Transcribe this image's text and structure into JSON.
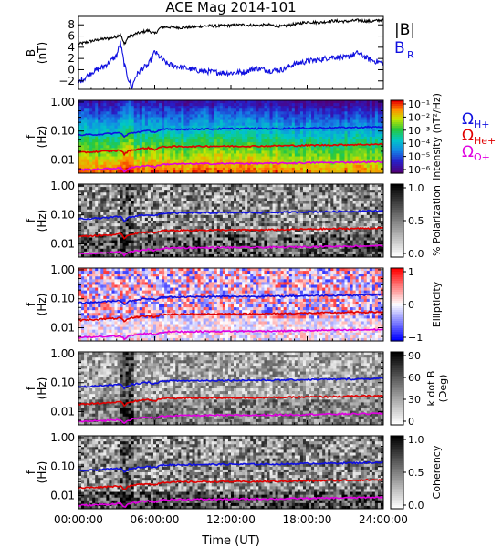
{
  "title": "ACE Mag 2014-101",
  "xlabel": "Time (UT)",
  "xticks": [
    "00:00:00",
    "06:00:00",
    "12:00:00",
    "18:00:00",
    "24:00:00"
  ],
  "colors": {
    "B_total": "#000000",
    "B_R": "#1010e0",
    "H_plus": "#1010e0",
    "He_plus": "#e00000",
    "O_plus": "#e000e0"
  },
  "chart_data": [
    {
      "type": "line",
      "panel": "field",
      "ylabel_top": "B",
      "ylabel_bottom": "(nT)",
      "yticks": [
        "8",
        "6",
        "4",
        "2",
        "0",
        "−2"
      ],
      "ylim": [
        -3.5,
        9.5
      ],
      "xlim_hours": [
        0,
        24
      ],
      "legend": [
        {
          "label": "|B|",
          "color": "#000000"
        },
        {
          "label": "B",
          "sub": "R",
          "color": "#1010e0"
        }
      ],
      "series": [
        {
          "name": "|B|",
          "x": [
            0,
            0.5,
            1,
            1.5,
            2,
            2.5,
            3,
            3.3,
            3.6,
            3.9,
            4.2,
            4.5,
            5,
            5.5,
            6,
            6.5,
            7,
            8,
            9,
            10,
            11,
            12,
            13,
            14,
            15,
            16,
            17,
            18,
            19,
            20,
            21,
            22,
            23,
            24
          ],
          "y": [
            4.6,
            4.8,
            5.1,
            5.3,
            5.5,
            5.6,
            5.9,
            6.4,
            4.5,
            5.8,
            6.0,
            6.4,
            6.7,
            7.0,
            6.4,
            7.6,
            7.6,
            7.5,
            7.6,
            7.8,
            7.8,
            7.9,
            8.0,
            7.9,
            8.0,
            7.7,
            8.1,
            8.5,
            8.4,
            8.7,
            8.6,
            8.8,
            8.6,
            8.9
          ]
        },
        {
          "name": "B_R",
          "x": [
            0,
            0.5,
            1,
            1.5,
            2,
            2.5,
            3,
            3.3,
            3.6,
            3.9,
            4.2,
            4.5,
            5,
            5.5,
            6,
            6.5,
            7,
            8,
            9,
            10,
            11,
            12,
            13,
            14,
            15,
            16,
            17,
            18,
            19,
            20,
            21,
            22,
            23,
            24
          ],
          "y": [
            -2.2,
            -1.5,
            -0.5,
            0.0,
            0.6,
            1.5,
            2.5,
            4.8,
            1.0,
            -1.5,
            -3.2,
            -1.2,
            0.2,
            0.8,
            3.2,
            2.0,
            1.0,
            0.5,
            0.0,
            -0.3,
            -0.5,
            -0.6,
            -0.4,
            0.3,
            -0.2,
            0.0,
            1.0,
            1.5,
            1.8,
            2.3,
            2.1,
            3.0,
            1.7,
            1.2
          ]
        }
      ]
    },
    {
      "type": "heatmap",
      "panel": "intensity",
      "ylabel_top": "f",
      "ylabel_bottom": "(Hz)",
      "yticks": [
        "1.00",
        "0.10",
        "0.01"
      ],
      "colorbar_label": "Intensity (nT²/Hz)",
      "colorbar_ticks": [
        "10⁻¹",
        "10⁻²",
        "10⁻³",
        "10⁻⁴",
        "10⁻⁵",
        "10⁻⁶"
      ],
      "colorbar_scale": "rainbow",
      "legend": [
        {
          "label": "Ω",
          "sub": "H+",
          "color": "#1010e0"
        },
        {
          "label": "Ω",
          "sub": "He+",
          "color": "#e00000"
        },
        {
          "label": "Ω",
          "sub": "O+",
          "color": "#e000e0"
        }
      ]
    },
    {
      "type": "heatmap",
      "panel": "polarization",
      "ylabel_top": "f",
      "ylabel_bottom": "(Hz)",
      "yticks": [
        "1.00",
        "0.10",
        "0.01"
      ],
      "colorbar_label": "% Polarization",
      "colorbar_ticks": [
        "1.0",
        "0.5",
        "0.0"
      ],
      "colorbar_scale": "gray"
    },
    {
      "type": "heatmap",
      "panel": "ellipticity",
      "ylabel_top": "f",
      "ylabel_bottom": "(Hz)",
      "yticks": [
        "1.00",
        "0.10",
        "0.01"
      ],
      "colorbar_label": "Ellipticity",
      "colorbar_ticks": [
        "1",
        "0",
        "−1"
      ],
      "colorbar_scale": "bluered"
    },
    {
      "type": "heatmap",
      "panel": "kdotb",
      "ylabel_top": "f",
      "ylabel_bottom": "(Hz)",
      "yticks": [
        "1.00",
        "0.10",
        "0.01"
      ],
      "colorbar_label": "k dot B",
      "colorbar_label2": "(Deg)",
      "colorbar_ticks": [
        "90",
        "60",
        "30",
        "0"
      ],
      "colorbar_scale": "gray"
    },
    {
      "type": "heatmap",
      "panel": "coherency",
      "ylabel_top": "f",
      "ylabel_bottom": "(Hz)",
      "yticks": [
        "1.00",
        "0.10",
        "0.01"
      ],
      "colorbar_label": "Coherency",
      "colorbar_ticks": [
        "1.0",
        "0.5",
        "0.0"
      ],
      "colorbar_scale": "gray"
    }
  ],
  "gyrofrequency_hz": {
    "x_hours": [
      0,
      1,
      2,
      3,
      3.3,
      3.6,
      4.0,
      4.5,
      5,
      5.5,
      6,
      6.5,
      7,
      8,
      10,
      12,
      14,
      16,
      18,
      20,
      22,
      24
    ],
    "H_plus": [
      0.072,
      0.075,
      0.079,
      0.085,
      0.088,
      0.062,
      0.082,
      0.09,
      0.098,
      0.102,
      0.092,
      0.11,
      0.115,
      0.116,
      0.118,
      0.12,
      0.121,
      0.122,
      0.128,
      0.13,
      0.134,
      0.14
    ],
    "He_plus": [
      0.018,
      0.019,
      0.02,
      0.021,
      0.022,
      0.016,
      0.021,
      0.023,
      0.025,
      0.026,
      0.023,
      0.028,
      0.029,
      0.029,
      0.03,
      0.03,
      0.03,
      0.031,
      0.032,
      0.033,
      0.034,
      0.035
    ],
    "O_plus": [
      0.0046,
      0.0047,
      0.0049,
      0.0052,
      0.0054,
      0.004,
      0.0052,
      0.0057,
      0.0062,
      0.0064,
      0.0058,
      0.0069,
      0.0072,
      0.0073,
      0.0074,
      0.0075,
      0.0076,
      0.0077,
      0.008,
      0.0082,
      0.0084,
      0.0087
    ]
  }
}
